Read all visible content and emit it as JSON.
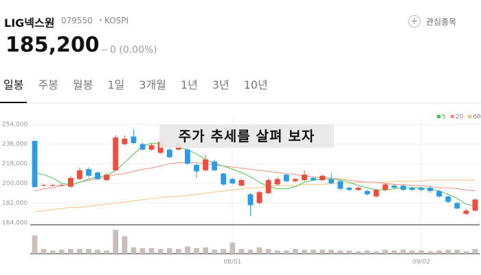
{
  "header": {
    "name": "LIG넥스원",
    "code": "079550",
    "market": "KOSPI",
    "watch": "관심종목",
    "price": "185,200",
    "change": "0 (0.00%)"
  },
  "tabs": [
    "일봉",
    "주봉",
    "월봉",
    "1일",
    "3개월",
    "1년",
    "3년",
    "10년"
  ],
  "caption": "주가 추세를 살펴 보자",
  "chart_data": {
    "type": "candlestick",
    "categories": [
      null,
      null,
      null,
      null,
      null,
      null,
      null,
      null,
      null,
      null,
      null,
      null,
      null,
      null,
      null,
      null,
      null,
      null,
      null,
      null,
      null,
      null,
      "08/01",
      null,
      null,
      null,
      null,
      null,
      null,
      null,
      null,
      null,
      null,
      null,
      null,
      null,
      null,
      null,
      null,
      null,
      null,
      null,
      null,
      "09/02",
      null,
      null,
      null,
      null,
      null,
      null
    ],
    "open": [
      238900,
      198000,
      198000,
      198000,
      197000,
      204000,
      213000,
      210000,
      203000,
      212000,
      236000,
      243000,
      236000,
      231000,
      228000,
      231000,
      231000,
      231000,
      217000,
      212000,
      220000,
      209000,
      204000,
      198000,
      190000,
      182000,
      191000,
      199000,
      208000,
      202000,
      203000,
      205000,
      203000,
      204000,
      202000,
      196000,
      194000,
      193000,
      188000,
      194000,
      198000,
      198000,
      196000,
      196000,
      196000,
      193000,
      188000,
      182000,
      172000,
      175000
    ],
    "close": [
      196700,
      198500,
      198500,
      198500,
      205000,
      212000,
      207000,
      204000,
      208000,
      242000,
      241000,
      237000,
      231000,
      235000,
      238000,
      224000,
      237000,
      218000,
      211000,
      222000,
      212000,
      199000,
      200000,
      203000,
      180000,
      192000,
      203000,
      204000,
      202000,
      204000,
      208000,
      203000,
      207000,
      200000,
      195000,
      194000,
      196000,
      190000,
      194000,
      199000,
      196000,
      194000,
      194000,
      194000,
      193000,
      188000,
      183000,
      177000,
      175000,
      185200
    ],
    "high": [
      239500,
      199500,
      199500,
      199500,
      206500,
      214500,
      214500,
      211000,
      209500,
      244000,
      244000,
      250000,
      237500,
      236500,
      240000,
      232500,
      238500,
      232000,
      218000,
      226000,
      221500,
      210000,
      205000,
      204500,
      191000,
      193000,
      204500,
      205500,
      209000,
      205000,
      212000,
      206000,
      208000,
      210000,
      203000,
      197000,
      197000,
      194000,
      195000,
      200000,
      199500,
      199000,
      197000,
      197000,
      198000,
      194000,
      189000,
      183000,
      176500,
      186000
    ],
    "low": [
      196000,
      197000,
      197000,
      197000,
      196000,
      203000,
      206000,
      203000,
      202000,
      211000,
      235000,
      236000,
      230000,
      230000,
      227000,
      223000,
      230000,
      217000,
      205000,
      211000,
      211000,
      198000,
      199000,
      197000,
      170000,
      181000,
      190000,
      198000,
      201000,
      201000,
      202000,
      202000,
      202000,
      199000,
      194000,
      193000,
      193000,
      189000,
      187000,
      193000,
      195000,
      193000,
      193000,
      193000,
      191000,
      187000,
      182000,
      176000,
      171000,
      174000
    ],
    "up_color": "#f04b3c",
    "down_color": "#2b9be6",
    "volume": [
      23,
      6,
      4,
      5,
      6,
      6,
      6,
      5,
      4,
      30,
      22,
      8,
      7,
      7,
      6,
      7,
      6,
      9,
      7,
      8,
      5,
      6,
      14,
      6,
      5,
      8,
      6,
      4,
      4,
      6,
      5,
      5,
      5,
      5,
      4,
      4,
      3,
      4,
      3,
      5,
      4,
      5,
      4,
      4,
      3,
      4,
      5,
      5,
      3,
      6
    ],
    "volume_lim": [
      0,
      32
    ],
    "volume_color": "#c9beb9",
    "series": [
      {
        "name": "5",
        "color": "#46c84a",
        "values": [
          210000,
          208000,
          205000,
          200000,
          199000,
          201000,
          204000,
          206000,
          207000,
          212000,
          219000,
          227000,
          234000,
          237000,
          236000,
          234000,
          233000,
          231000,
          227000,
          222000,
          218000,
          216000,
          213000,
          210000,
          206000,
          201000,
          197000,
          195000,
          195000,
          197000,
          201000,
          203000,
          204000,
          204000,
          203000,
          201000,
          198000,
          196000,
          194000,
          194000,
          195000,
          196000,
          196000,
          196000,
          195000,
          193000,
          190000,
          186000,
          181000,
          179000
        ]
      },
      {
        "name": "20",
        "color": "#f0907f",
        "values": [
          193000,
          195000,
          196000,
          198000,
          199000,
          201000,
          203000,
          204000,
          206000,
          208000,
          209000,
          211000,
          213000,
          214000,
          216000,
          218000,
          219000,
          219000,
          219000,
          218000,
          217000,
          216000,
          215000,
          214000,
          213000,
          212000,
          211000,
          210000,
          209000,
          208000,
          207000,
          206000,
          205000,
          205000,
          204000,
          203000,
          202000,
          201000,
          201000,
          200000,
          199000,
          199000,
          198000,
          198000,
          197000,
          196000,
          196000,
          195000,
          194000,
          193000
        ]
      },
      {
        "name": "60",
        "color": "#f5c27a",
        "values": [
          174000,
          175000,
          176000,
          177000,
          178000,
          178000,
          179000,
          180000,
          181000,
          182000,
          183000,
          184000,
          185000,
          186000,
          187000,
          188000,
          188000,
          189000,
          190000,
          191000,
          192000,
          193000,
          194000,
          195000,
          196000,
          196000,
          197000,
          198000,
          198000,
          198000,
          199000,
          199000,
          199000,
          200000,
          200000,
          200000,
          201000,
          201000,
          201000,
          201000,
          202000,
          202000,
          202000,
          202000,
          203000,
          203000,
          203000,
          203000,
          203000,
          203000
        ]
      }
    ],
    "ylim": [
      162000,
      261000
    ],
    "yticks": [
      {
        "value": 164000,
        "label": "164,000"
      },
      {
        "value": 182000,
        "label": "182,000"
      },
      {
        "value": 200000,
        "label": "200,000"
      },
      {
        "value": 218000,
        "label": "218,000"
      },
      {
        "value": 236000,
        "label": "236,000"
      },
      {
        "value": 254000,
        "label": "254,000"
      }
    ],
    "grid": true
  }
}
